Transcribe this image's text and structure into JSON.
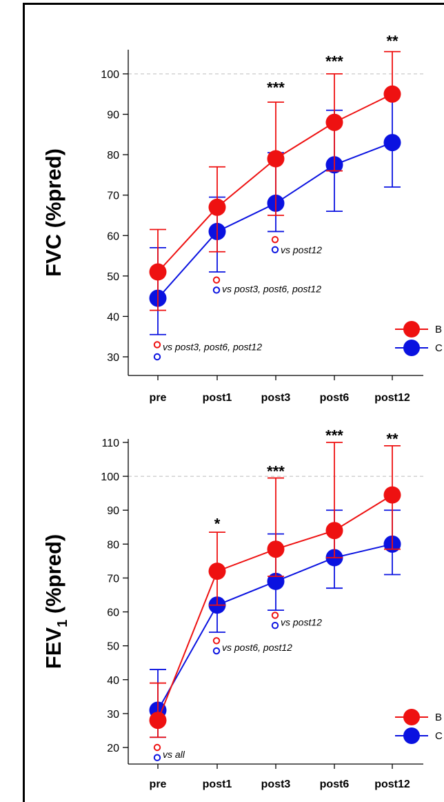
{
  "chart_data": [
    {
      "type": "line",
      "ylabel_main": "FVC",
      "ylabel_unit": " (%pred)",
      "ylabel_sub": "",
      "categories": [
        "pre",
        "post1",
        "post3",
        "post6",
        "post12"
      ],
      "ylim": [
        26,
        106
      ],
      "yticks": [
        30,
        40,
        50,
        60,
        70,
        80,
        90,
        100
      ],
      "reference_line": 100,
      "legend": {
        "placement": "bottom-right",
        "labels": [
          "B",
          "C"
        ]
      },
      "series": [
        {
          "name": "B",
          "color": "#ee1111",
          "values": [
            51,
            67,
            79,
            88,
            95
          ],
          "err_low": [
            41.5,
            56,
            65,
            76,
            95
          ],
          "err_high": [
            61.5,
            77,
            93,
            100,
            105.5
          ]
        },
        {
          "name": "C",
          "color": "#0a12e0",
          "values": [
            44.5,
            61,
            68,
            77.5,
            83
          ],
          "err_low": [
            35.5,
            51,
            61,
            66,
            72
          ],
          "err_high": [
            57,
            69.5,
            80.5,
            91,
            95.5
          ]
        }
      ],
      "significance": [
        {
          "category": "post3",
          "label": "***",
          "y": 97
        },
        {
          "category": "post6",
          "label": "***",
          "y": 103.5
        },
        {
          "category": "post12",
          "label": "**",
          "y": 108.5
        }
      ],
      "annotations": [
        {
          "category": "pre",
          "offset": 8,
          "y": 32.5,
          "text": "vs post3, post6, post12",
          "marks": [
            {
              "color": "#ee1111",
              "y": 33
            },
            {
              "color": "#0a12e0",
              "y": 30
            }
          ]
        },
        {
          "category": "post1",
          "offset": 8,
          "y": 46.8,
          "text": "vs post3, post6, post12",
          "marks": [
            {
              "color": "#ee1111",
              "y": 49
            },
            {
              "color": "#0a12e0",
              "y": 46.5
            }
          ]
        },
        {
          "category": "post3",
          "offset": 8,
          "y": 56.5,
          "text": "vs post12",
          "marks": [
            {
              "color": "#ee1111",
              "y": 59
            },
            {
              "color": "#0a12e0",
              "y": 56.5
            }
          ]
        }
      ]
    },
    {
      "type": "line",
      "ylabel_main": "FEV",
      "ylabel_unit": " (%pred)",
      "ylabel_sub": "1",
      "categories": [
        "pre",
        "post1",
        "post3",
        "post6",
        "post12"
      ],
      "ylim": [
        16,
        111
      ],
      "yticks": [
        20,
        30,
        40,
        50,
        60,
        70,
        80,
        90,
        100,
        110
      ],
      "reference_line": 100,
      "legend": {
        "placement": "bottom-right",
        "labels": [
          "B",
          "C"
        ]
      },
      "series": [
        {
          "name": "B",
          "color": "#ee1111",
          "values": [
            28,
            72,
            78.5,
            84,
            94.5
          ],
          "err_low": [
            23,
            62,
            70.5,
            76,
            78.5
          ],
          "err_high": [
            39,
            83.5,
            99.5,
            110,
            109
          ]
        },
        {
          "name": "C",
          "color": "#0a12e0",
          "values": [
            31,
            62,
            69,
            76,
            80
          ],
          "err_low": [
            23,
            54,
            60.5,
            67,
            71
          ],
          "err_high": [
            43,
            62,
            83,
            90,
            90
          ]
        }
      ],
      "significance": [
        {
          "category": "post1",
          "label": "*",
          "y": 86.5
        },
        {
          "category": "post3",
          "label": "***",
          "y": 102
        },
        {
          "category": "post6",
          "label": "***",
          "y": 112.5
        },
        {
          "category": "post12",
          "label": "**",
          "y": 111.5
        }
      ],
      "annotations": [
        {
          "category": "pre",
          "offset": 8,
          "y": 18,
          "text": "vs all",
          "marks": [
            {
              "color": "#ee1111",
              "y": 20
            },
            {
              "color": "#0a12e0",
              "y": 17
            }
          ]
        },
        {
          "category": "post1",
          "offset": 8,
          "y": 49.5,
          "text": "vs post6, post12",
          "marks": [
            {
              "color": "#ee1111",
              "y": 51.5
            },
            {
              "color": "#0a12e0",
              "y": 48.5
            }
          ]
        },
        {
          "category": "post3",
          "offset": 8,
          "y": 57,
          "text": "vs post12",
          "marks": [
            {
              "color": "#ee1111",
              "y": 59
            },
            {
              "color": "#0a12e0",
              "y": 56
            }
          ]
        }
      ]
    }
  ]
}
